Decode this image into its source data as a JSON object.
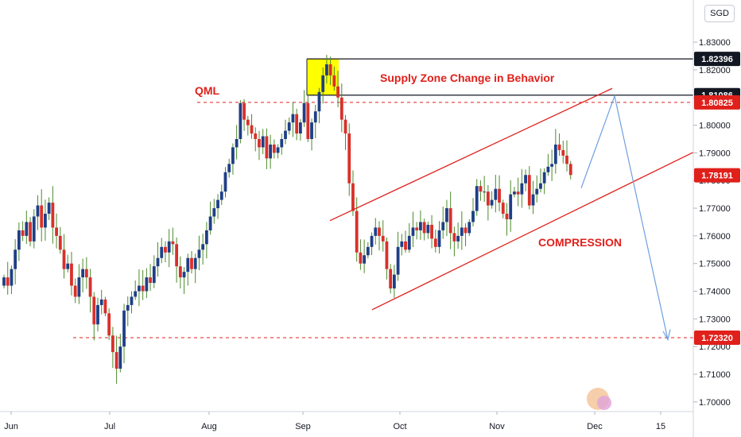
{
  "currency": "SGD",
  "chart_data": {
    "type": "candlestick",
    "y_ticks": [
      1.83,
      1.82,
      1.81,
      1.8,
      1.79,
      1.78,
      1.77,
      1.76,
      1.75,
      1.74,
      1.73,
      1.72,
      1.71,
      1.7
    ],
    "y_tick_labels": [
      "1.83000",
      "1.82000",
      "1.81000",
      "1.80000",
      "1.79000",
      "1.78000",
      "1.77000",
      "1.76000",
      "1.75000",
      "1.74000",
      "1.73000",
      "1.72000",
      "1.71000",
      "1.70000"
    ],
    "ylim": [
      1.6965,
      1.8418
    ],
    "x_labels": [
      "Jun",
      "Jul",
      "Aug",
      "Sep",
      "Oct",
      "Nov",
      "Dec",
      "15"
    ],
    "price_badges": [
      {
        "label": "1.82396",
        "value": 1.82396,
        "bg": "#131722",
        "fg": "#ffffff"
      },
      {
        "label": "1.81086",
        "value": 1.81086,
        "bg": "#131722",
        "fg": "#ffffff"
      },
      {
        "label": "1.80825",
        "value": 1.80825,
        "bg": "#e0201b",
        "fg": "#ffffff"
      },
      {
        "label": "1.78191",
        "value": 1.78191,
        "bg": "#e0201b",
        "fg": "#ffffff"
      },
      {
        "label": "1.72320",
        "value": 1.7232,
        "bg": "#e0201b",
        "fg": "#ffffff"
      }
    ],
    "annotations": {
      "qml": "QML",
      "supply_zone": "Supply Zone Change in Behavior",
      "compression": "COMPRESSION"
    },
    "levels": {
      "qml": 1.80825,
      "supply_top": 1.82396,
      "supply_bottom": 1.81086,
      "target": 1.7232
    },
    "colors": {
      "up": "#1f3f86",
      "down": "#d9302a",
      "wick": "#4c8a2c",
      "level": "#e0201b",
      "projection": "#6fa0e0",
      "zone": "#ffff00"
    },
    "closes": [
      1.745,
      1.742,
      1.748,
      1.755,
      1.762,
      1.76,
      1.765,
      1.758,
      1.767,
      1.771,
      1.763,
      1.768,
      1.772,
      1.763,
      1.76,
      1.755,
      1.748,
      1.75,
      1.742,
      1.738,
      1.745,
      1.748,
      1.745,
      1.738,
      1.728,
      1.735,
      1.737,
      1.732,
      1.724,
      1.718,
      1.712,
      1.72,
      1.733,
      1.735,
      1.738,
      1.74,
      1.742,
      1.74,
      1.745,
      1.743,
      1.749,
      1.752,
      1.756,
      1.754,
      1.758,
      1.757,
      1.749,
      1.745,
      1.747,
      1.752,
      1.748,
      1.752,
      1.755,
      1.757,
      1.762,
      1.767,
      1.77,
      1.773,
      1.776,
      1.783,
      1.786,
      1.792,
      1.795,
      1.808,
      1.802,
      1.8,
      1.797,
      1.795,
      1.792,
      1.796,
      1.788,
      1.793,
      1.79,
      1.792,
      1.795,
      1.798,
      1.801,
      1.804,
      1.797,
      1.801,
      1.808,
      1.795,
      1.801,
      1.805,
      1.812,
      1.818,
      1.822,
      1.818,
      1.814,
      1.81,
      1.802,
      1.797,
      1.779,
      1.769,
      1.754,
      1.75,
      1.753,
      1.756,
      1.76,
      1.763,
      1.76,
      1.758,
      1.748,
      1.741,
      1.746,
      1.756,
      1.758,
      1.755,
      1.76,
      1.763,
      1.762,
      1.765,
      1.761,
      1.764,
      1.759,
      1.756,
      1.762,
      1.765,
      1.77,
      1.761,
      1.758,
      1.76,
      1.763,
      1.761,
      1.765,
      1.769,
      1.778,
      1.776,
      1.776,
      1.771,
      1.773,
      1.777,
      1.772,
      1.768,
      1.766,
      1.775,
      1.776,
      1.775,
      1.779,
      1.782,
      1.771,
      1.775,
      1.777,
      1.779,
      1.783,
      1.785,
      1.786,
      1.793,
      1.791,
      1.789,
      1.786,
      1.782
    ],
    "x_range": [
      0,
      190
    ]
  }
}
